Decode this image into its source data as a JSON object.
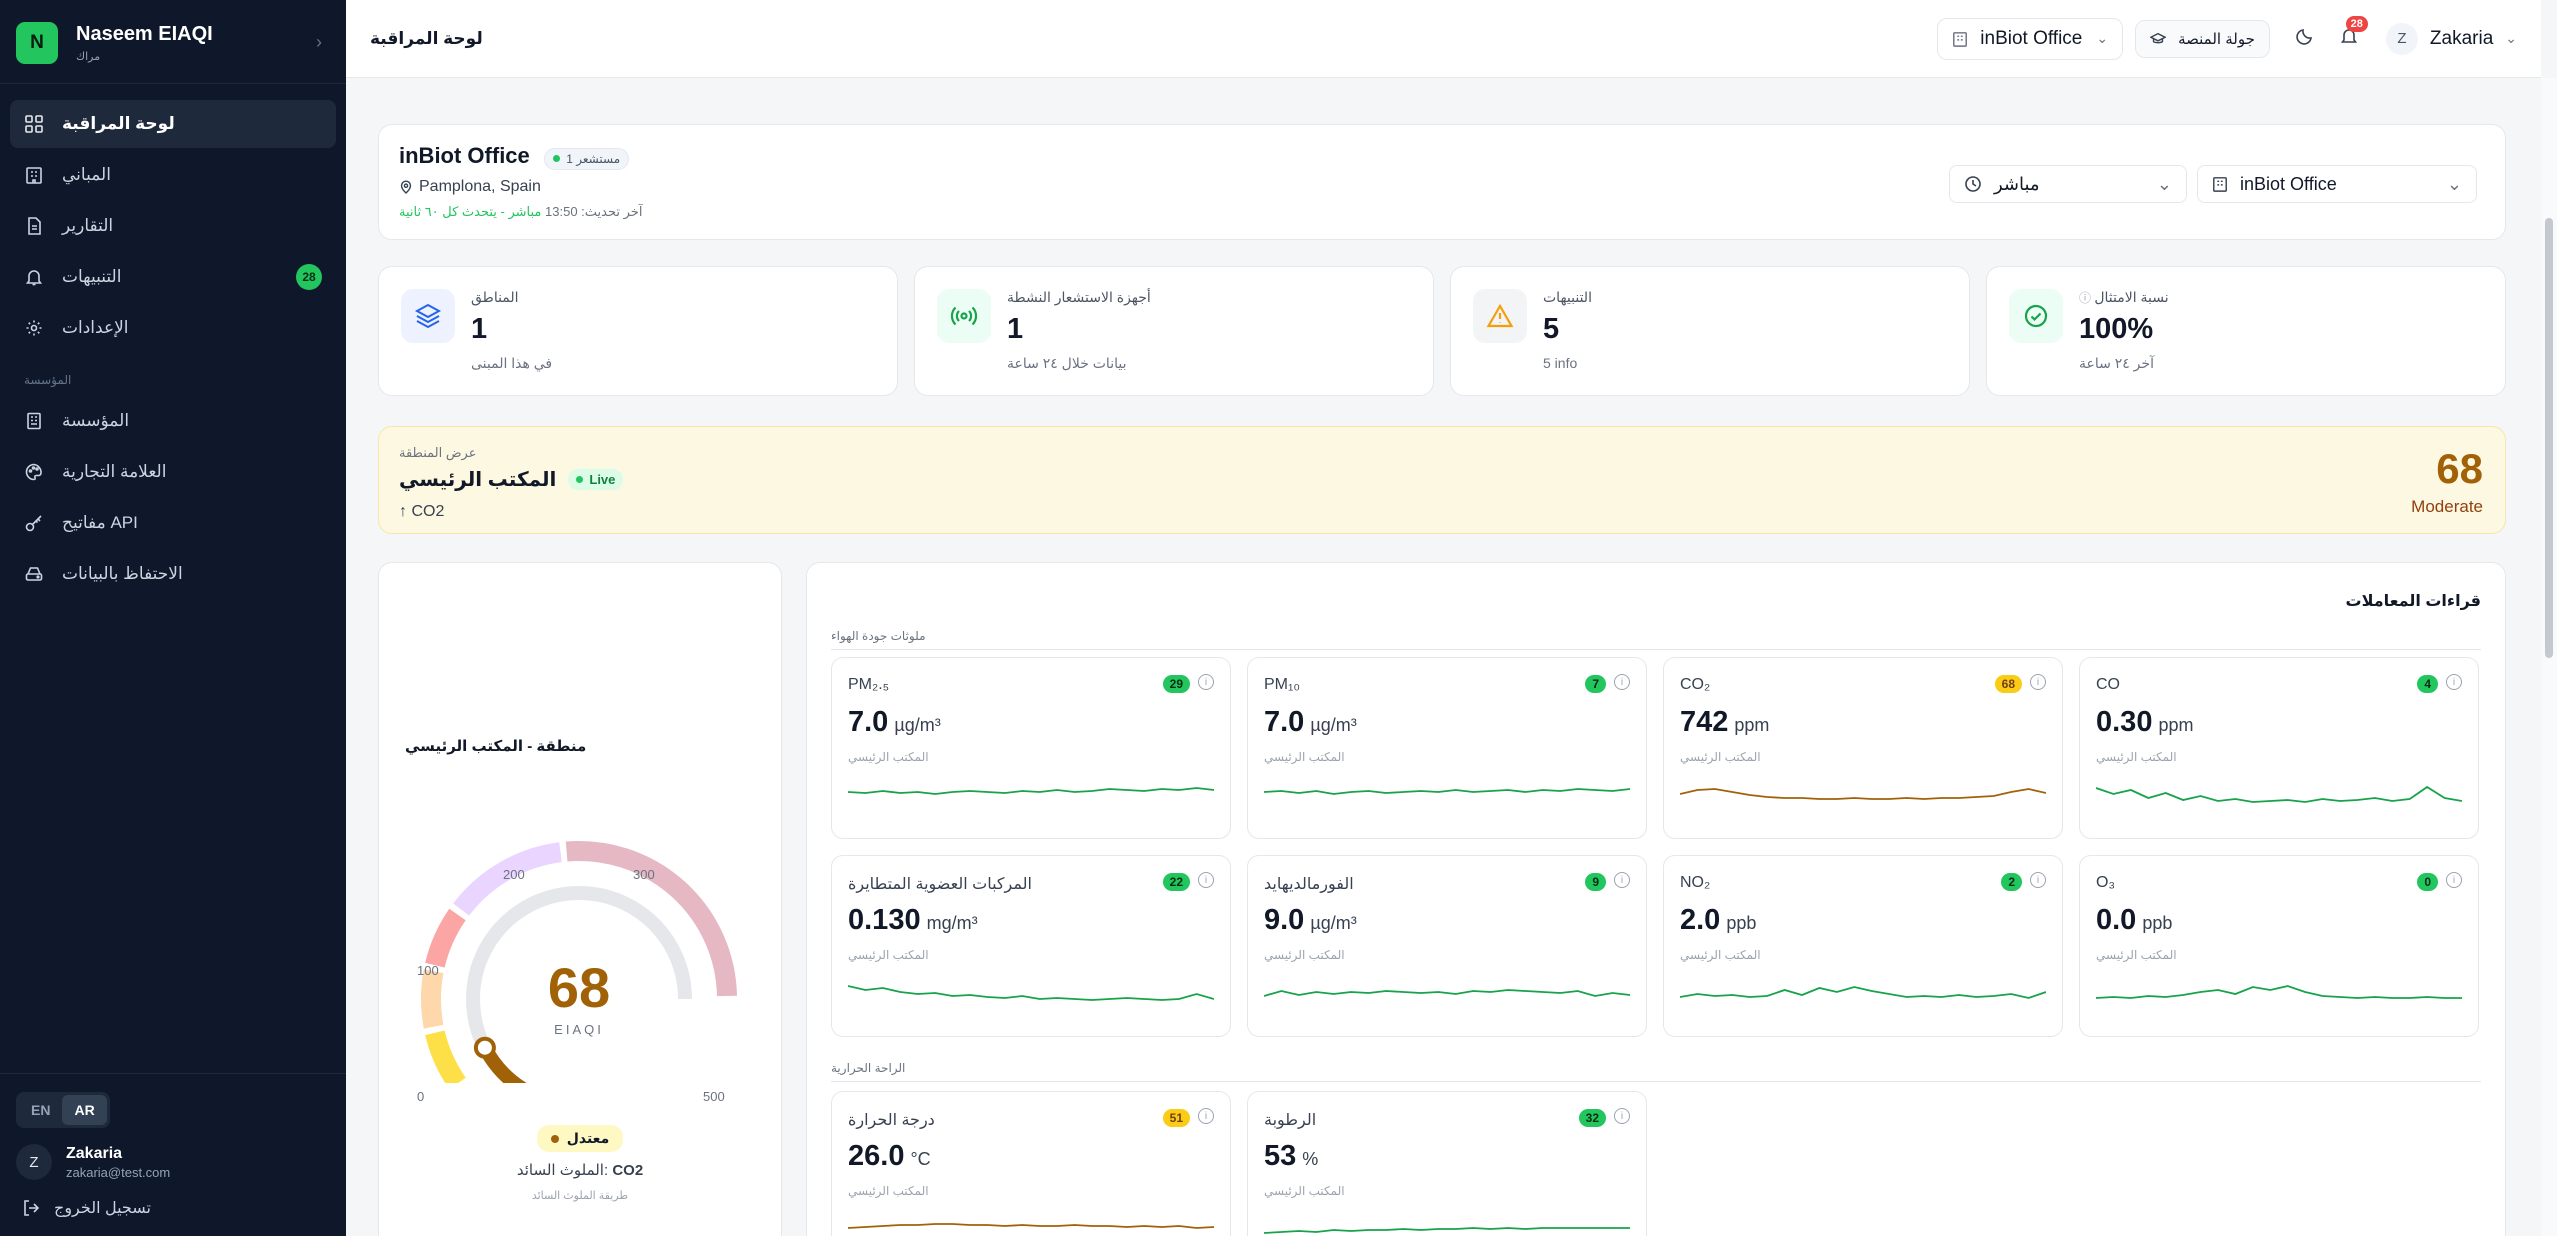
{
  "brand": {
    "initial": "N",
    "name": "Naseem EIAQI",
    "sub": "مراك"
  },
  "nav": {
    "items": [
      {
        "label": "لوحة المراقبة",
        "icon": "grid-icon",
        "active": true
      },
      {
        "label": "المباني",
        "icon": "building-icon"
      },
      {
        "label": "التقارير",
        "icon": "report-icon"
      },
      {
        "label": "التنبيهات",
        "icon": "bell-icon",
        "badge": "28"
      },
      {
        "label": "الإعدادات",
        "icon": "gear-icon"
      }
    ],
    "section": "المؤسسة",
    "org_items": [
      {
        "label": "المؤسسة",
        "icon": "org-icon"
      },
      {
        "label": "العلامة التجارية",
        "icon": "palette-icon"
      },
      {
        "label": "مفاتيح API",
        "icon": "key-icon"
      },
      {
        "label": "الاحتفاظ بالبيانات",
        "icon": "database-icon"
      }
    ]
  },
  "lang": {
    "en": "EN",
    "ar": "AR"
  },
  "user": {
    "initial": "Z",
    "name": "Zakaria",
    "email": "zakaria@test.com",
    "logout": "تسجيل الخروج"
  },
  "topbar": {
    "title": "لوحة المراقبة",
    "building": "inBiot Office",
    "tour": "جولة المنصة",
    "notif_count": "28",
    "user_initial": "Z",
    "user_name": "Zakaria"
  },
  "header": {
    "title": "inBiot Office",
    "sensor_pill": "مستشعر 1",
    "location": "Pamplona, Spain",
    "updated_label": "آخر تحديث: 13:50",
    "live_text": "مباشر - يتحدث كل ٦٠ ثانية",
    "mode_select": "مباشر",
    "building_select": "inBiot Office"
  },
  "stats": [
    {
      "label": "المناطق",
      "value": "1",
      "sub": "في هذا المبنى",
      "icon": "layers-icon"
    },
    {
      "label": "أجهزة الاستشعار النشطة",
      "value": "1",
      "sub": "بيانات خلال ٢٤ ساعة",
      "icon": "signal-icon"
    },
    {
      "label": "التنبيهات",
      "value": "5",
      "sub": "5 info",
      "icon": "warning-icon"
    },
    {
      "label": "نسبة الامتثال",
      "value": "100%",
      "sub": "آخر ٢٤ ساعة",
      "icon": "check-circle-icon"
    }
  ],
  "zone": {
    "small": "عرض المنطقة",
    "name": "المكتب الرئيسي",
    "live": "Live",
    "pollutant": "↑ CO2",
    "value": "68",
    "level": "Moderate"
  },
  "gauge": {
    "title": "منطقة - المكتب الرئيسي",
    "value": "68",
    "label": "EIAQI",
    "scale_0": "0",
    "scale_100": "100",
    "scale_200": "200",
    "scale_300": "300",
    "scale_500": "500",
    "status": "معتدل",
    "dominant_label": "الملوث السائد:",
    "dominant": "CO2",
    "method": "طريقة الملوث السائد",
    "value_num": 68,
    "max": 500
  },
  "params": {
    "title": "قراءات المعاملات",
    "section_air": "ملوثات جودة الهواء",
    "section_thermal": "الراحة الحرارية",
    "tiles": [
      {
        "name": "PM₂.₅",
        "value": "7.0",
        "unit": "µg/m³",
        "badge": "29",
        "badge_color": "#22c55e",
        "zone": "المكتب الرئيسي",
        "line": "#16a34a"
      },
      {
        "name": "PM₁₀",
        "value": "7.0",
        "unit": "µg/m³",
        "badge": "7",
        "badge_color": "#22c55e",
        "zone": "المكتب الرئيسي",
        "line": "#16a34a"
      },
      {
        "name": "CO₂",
        "value": "742",
        "unit": "ppm",
        "badge": "68",
        "badge_color": "#facc15",
        "zone": "المكتب الرئيسي",
        "line": "#a16207"
      },
      {
        "name": "CO",
        "value": "0.30",
        "unit": "ppm",
        "badge": "4",
        "badge_color": "#22c55e",
        "zone": "المكتب الرئيسي",
        "line": "#16a34a"
      },
      {
        "name": "المركبات العضوية المتطايرة",
        "value": "0.130",
        "unit": "mg/m³",
        "badge": "22",
        "badge_color": "#22c55e",
        "zone": "المكتب الرئيسي",
        "line": "#16a34a"
      },
      {
        "name": "الفورمالديهايد",
        "value": "9.0",
        "unit": "µg/m³",
        "badge": "9",
        "badge_color": "#22c55e",
        "zone": "المكتب الرئيسي",
        "line": "#16a34a"
      },
      {
        "name": "NO₂",
        "value": "2.0",
        "unit": "ppb",
        "badge": "2",
        "badge_color": "#22c55e",
        "zone": "المكتب الرئيسي",
        "line": "#16a34a"
      },
      {
        "name": "O₃",
        "value": "0.0",
        "unit": "ppb",
        "badge": "0",
        "badge_color": "#22c55e",
        "zone": "المكتب الرئيسي",
        "line": "#16a34a"
      },
      {
        "name": "درجة الحرارة",
        "value": "26.0",
        "unit": "°C",
        "badge": "51",
        "badge_color": "#facc15",
        "zone": "المكتب الرئيسي",
        "line": "#a16207"
      },
      {
        "name": "الرطوبة",
        "value": "53",
        "unit": "%",
        "badge": "32",
        "badge_color": "#22c55e",
        "zone": "المكتب الرئيسي",
        "line": "#16a34a"
      }
    ]
  }
}
